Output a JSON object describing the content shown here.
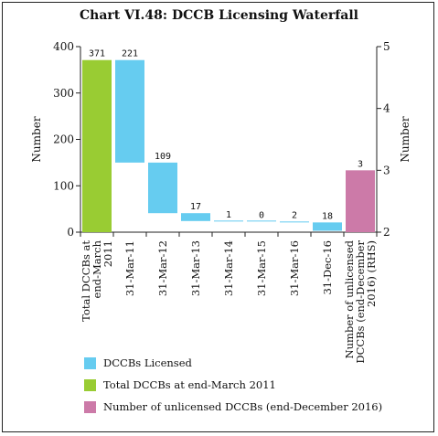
{
  "title": "Chart VI.48: DCCB Licensing Waterfall",
  "colors": {
    "licensed": "#66ccf0",
    "total": "#99cc33",
    "unlicensed": "#cc7aa8"
  },
  "chart_data": {
    "type": "bar",
    "subtype": "waterfall",
    "ylabel": "Number",
    "y2label": "Number",
    "ylim": [
      0,
      400
    ],
    "yticks": [
      0,
      100,
      200,
      300,
      400
    ],
    "y2lim": [
      2,
      5
    ],
    "y2ticks": [
      2,
      3,
      4,
      5
    ],
    "categories": [
      "Total DCCBs at end-March 2011",
      "31-Mar-11",
      "31-Mar-12",
      "31-Mar-13",
      "31-Mar-14",
      "31-Mar-15",
      "31-Mar-16",
      "31-Dec-16",
      "Number of unlicensed DCCBs (end-December 2016) (RHS)"
    ],
    "labels": [
      "371",
      "221",
      "109",
      "17",
      "1",
      "0",
      "2",
      "18",
      "3"
    ],
    "bars": [
      {
        "series": "total",
        "base": 0,
        "top": 371,
        "axis": "left"
      },
      {
        "series": "licensed",
        "base": 150,
        "top": 371,
        "axis": "left"
      },
      {
        "series": "licensed",
        "base": 41,
        "top": 150,
        "axis": "left"
      },
      {
        "series": "licensed",
        "base": 24,
        "top": 41,
        "axis": "left"
      },
      {
        "series": "licensed",
        "base": 23,
        "top": 24,
        "axis": "left"
      },
      {
        "series": "licensed",
        "base": 23,
        "top": 23,
        "axis": "left"
      },
      {
        "series": "licensed",
        "base": 21,
        "top": 23,
        "axis": "left"
      },
      {
        "series": "licensed",
        "base": 3,
        "top": 21,
        "axis": "left"
      },
      {
        "series": "unlicensed",
        "base": 2,
        "top": 3,
        "axis": "right"
      }
    ],
    "legend": [
      {
        "key": "licensed",
        "label": "DCCBs Licensed"
      },
      {
        "key": "total",
        "label": "Total DCCBs at end-March 2011"
      },
      {
        "key": "unlicensed",
        "label": "Number of unlicensed DCCBs (end-December 2016)"
      }
    ],
    "legend_position": "bottom"
  }
}
